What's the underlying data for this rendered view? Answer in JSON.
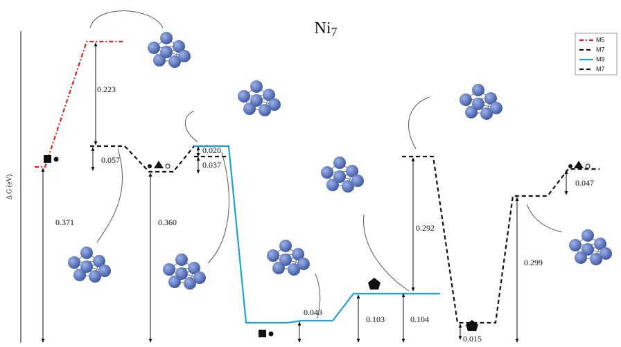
{
  "title": {
    "text": "Ni",
    "subscript": "7"
  },
  "y_axis_label": "Δ G (eV)",
  "legend": [
    "M5",
    "M7",
    "M9",
    "M7"
  ],
  "annotations": [
    "0.223",
    "0.057",
    "0.371",
    "0.360",
    "0.020",
    "0.037",
    "0.043",
    "0.103",
    "0.104",
    "0.292",
    "0.015",
    "0.299",
    "0.047"
  ]
}
